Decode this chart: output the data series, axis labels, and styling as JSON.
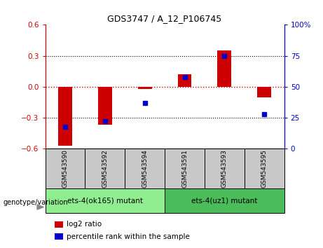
{
  "title": "GDS3747 / A_12_P106745",
  "samples": [
    "GSM543590",
    "GSM543592",
    "GSM543594",
    "GSM543591",
    "GSM543593",
    "GSM543595"
  ],
  "log2_ratio": [
    -0.57,
    -0.37,
    -0.02,
    0.12,
    0.35,
    -0.1
  ],
  "percentile_rank": [
    18,
    22,
    37,
    58,
    75,
    28
  ],
  "ylim_left": [
    -0.6,
    0.6
  ],
  "ylim_right": [
    0,
    100
  ],
  "yticks_left": [
    -0.6,
    -0.3,
    0.0,
    0.3,
    0.6
  ],
  "yticks_right": [
    0,
    25,
    50,
    75,
    100
  ],
  "ytick_labels_right": [
    "0",
    "25",
    "50",
    "75",
    "100%"
  ],
  "groups": [
    {
      "label": "ets-4(ok165) mutant",
      "indices": [
        0,
        1,
        2
      ],
      "color": "#90EE90"
    },
    {
      "label": "ets-4(uz1) mutant",
      "indices": [
        3,
        4,
        5
      ],
      "color": "#4CBB5A"
    }
  ],
  "bar_color": "#cc0000",
  "dot_color": "#0000cc",
  "bar_width": 0.35,
  "zero_line_color": "#cc0000",
  "dotted_line_color": "black",
  "background_color": "#ffffff",
  "plot_bg_color": "#ffffff",
  "tick_area_color": "#c8c8c8",
  "legend_log2_label": "log2 ratio",
  "legend_percentile_label": "percentile rank within the sample",
  "genotype_label": "genotype/variation",
  "left_yaxis_color": "#cc0000",
  "right_yaxis_color": "#0000cc"
}
